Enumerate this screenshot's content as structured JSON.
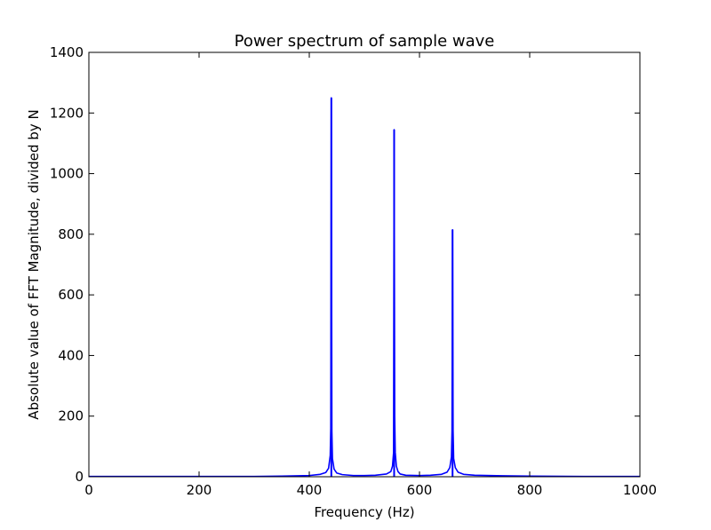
{
  "chart_data": {
    "type": "line",
    "title": "Power spectrum of sample wave",
    "xlabel": "Frequency (Hz)",
    "ylabel": "Absolute value of FFT Magnitude, divided by N",
    "xlim": [
      0,
      1000
    ],
    "ylim": [
      0,
      1400
    ],
    "xticks": [
      0,
      200,
      400,
      600,
      800,
      1000
    ],
    "yticks": [
      0,
      200,
      400,
      600,
      800,
      1000,
      1200,
      1400
    ],
    "grid": false,
    "series": [
      {
        "color": "#0000ff",
        "peaks": [
          {
            "x": 440,
            "y": 1250
          },
          {
            "x": 554,
            "y": 1145
          },
          {
            "x": 660,
            "y": 815
          }
        ],
        "x": [
          0,
          100,
          200,
          300,
          350,
          400,
          420,
          430,
          435,
          438,
          439,
          440,
          441,
          442,
          445,
          450,
          460,
          480,
          500,
          520,
          540,
          548,
          551,
          553,
          554,
          555,
          556,
          558,
          561,
          565,
          575,
          600,
          620,
          640,
          650,
          655,
          658,
          659,
          660,
          661,
          662,
          665,
          670,
          680,
          700,
          750,
          800,
          900,
          1000
        ],
        "y": [
          1,
          1,
          1,
          1,
          2,
          4,
          8,
          14,
          28,
          70,
          160,
          1250,
          150,
          60,
          25,
          12,
          7,
          4,
          4,
          5,
          9,
          17,
          35,
          80,
          1145,
          200,
          80,
          35,
          17,
          9,
          5,
          4,
          5,
          8,
          15,
          30,
          65,
          150,
          815,
          150,
          60,
          30,
          15,
          8,
          5,
          3,
          2,
          1,
          1
        ]
      }
    ]
  }
}
